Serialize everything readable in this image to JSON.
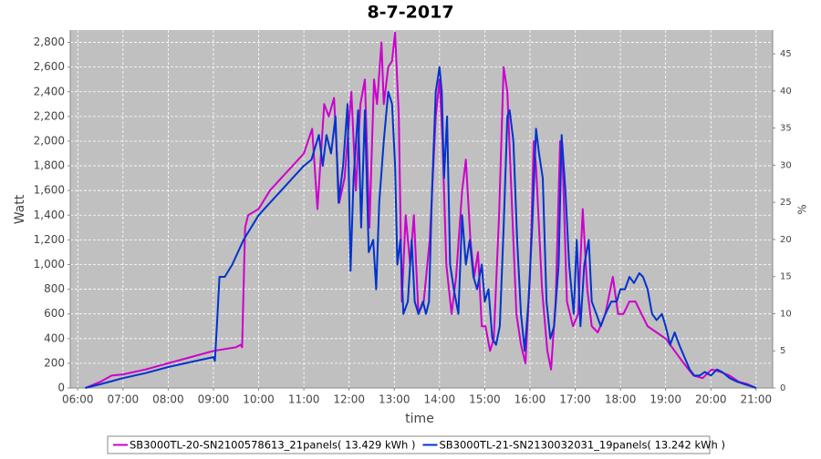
{
  "chart_data": {
    "type": "line",
    "title": "8-7-2017",
    "x_label": "time",
    "y_label": "Watt",
    "y2_label": "%",
    "xlim": [
      "05:50",
      "21:22"
    ],
    "xticks": [
      "06:00",
      "07:00",
      "08:00",
      "09:00",
      "10:00",
      "11:00",
      "12:00",
      "13:00",
      "14:00",
      "15:00",
      "16:00",
      "17:00",
      "18:00",
      "19:00",
      "20:00",
      "21:00"
    ],
    "ylim": [
      0,
      2900
    ],
    "yticks": [
      0,
      200,
      400,
      600,
      800,
      {
        "value": 1000,
        "label": "1,000"
      },
      {
        "value": 1200,
        "label": "1,200"
      },
      {
        "value": 1400,
        "label": "1,400"
      },
      {
        "value": 1600,
        "label": "1,600"
      },
      {
        "value": 1800,
        "label": "1,800"
      },
      {
        "value": 2000,
        "label": "2,000"
      },
      {
        "value": 2200,
        "label": "2,200"
      },
      {
        "value": 2400,
        "label": "2,400"
      },
      {
        "value": 2600,
        "label": "2,600"
      },
      {
        "value": 2800,
        "label": "2,800"
      }
    ],
    "y2lim": [
      0,
      48.2
    ],
    "y2ticks": [
      0,
      5,
      10,
      15,
      20,
      25,
      30,
      35,
      40,
      45
    ],
    "grid": true,
    "legend": "bottom",
    "series": [
      {
        "name": "SB3000TL-20-SN2100578613_21panels( 13.429 kWh )",
        "color": "#cc00cc",
        "x": [
          "06:10",
          "06:30",
          "06:45",
          "07:00",
          "07:30",
          "08:00",
          "08:30",
          "09:00",
          "09:30",
          "09:36",
          "09:38",
          "09:42",
          "09:46",
          "10:00",
          "10:15",
          "10:30",
          "10:45",
          "11:00",
          "11:11",
          "11:18",
          "11:27",
          "11:33",
          "11:40",
          "11:47",
          "11:54",
          "12:03",
          "12:09",
          "12:15",
          "12:21",
          "12:27",
          "12:33",
          "12:37",
          "12:43",
          "12:46",
          "12:52",
          "12:57",
          "13:01",
          "13:06",
          "13:10",
          "13:15",
          "13:21",
          "13:26",
          "13:32",
          "13:39",
          "13:47",
          "13:55",
          "14:00",
          "14:04",
          "14:09",
          "14:16",
          "14:22",
          "14:30",
          "14:35",
          "14:41",
          "14:46",
          "14:51",
          "14:56",
          "15:01",
          "15:07",
          "15:12",
          "15:19",
          "15:25",
          "15:30",
          "15:36",
          "15:42",
          "15:48",
          "15:54",
          "16:00",
          "16:05",
          "16:08",
          "16:16",
          "16:23",
          "16:28",
          "16:34",
          "16:40",
          "16:43",
          "16:49",
          "16:57",
          "17:04",
          "17:10",
          "17:16",
          "17:22",
          "17:30",
          "17:40",
          "17:50",
          "17:57",
          "18:04",
          "18:12",
          "18:20",
          "18:28",
          "18:36",
          "18:48",
          "19:00",
          "19:12",
          "19:24",
          "19:37",
          "19:49",
          "20:01",
          "20:13",
          "20:25",
          "20:37",
          "20:49",
          "21:00"
        ],
        "values": [
          0,
          50,
          100,
          110,
          150,
          200,
          250,
          300,
          330,
          350,
          330,
          1300,
          1400,
          1450,
          1600,
          1700,
          1800,
          1900,
          2100,
          1450,
          2300,
          2200,
          2350,
          1500,
          1700,
          2400,
          1600,
          2300,
          2500,
          1300,
          2500,
          2300,
          2800,
          2300,
          2600,
          2650,
          2880,
          2200,
          700,
          1400,
          1000,
          1400,
          600,
          700,
          1200,
          2200,
          2500,
          2000,
          1000,
          600,
          900,
          1600,
          1850,
          1200,
          900,
          1100,
          500,
          500,
          300,
          400,
          1400,
          2600,
          2400,
          1500,
          600,
          350,
          200,
          900,
          2000,
          1800,
          800,
          300,
          150,
          700,
          2000,
          1900,
          700,
          500,
          600,
          1450,
          800,
          500,
          450,
          600,
          900,
          600,
          600,
          700,
          700,
          600,
          500,
          450,
          400,
          300,
          200,
          100,
          80,
          150,
          130,
          100,
          50,
          30,
          0
        ]
      },
      {
        "name": "SB3000TL-21-SN2130032031_19panels( 13.242 kWh )",
        "color": "#0033cc",
        "x": [
          "06:10",
          "06:30",
          "07:00",
          "07:30",
          "08:00",
          "08:30",
          "09:00",
          "09:02",
          "09:05",
          "09:08",
          "09:15",
          "09:25",
          "09:40",
          "10:00",
          "10:15",
          "10:30",
          "10:45",
          "11:00",
          "11:10",
          "11:20",
          "11:25",
          "11:30",
          "11:36",
          "11:42",
          "11:46",
          "11:52",
          "11:58",
          "12:02",
          "12:06",
          "12:12",
          "12:16",
          "12:21",
          "12:26",
          "12:32",
          "12:36",
          "12:40",
          "12:46",
          "12:52",
          "12:57",
          "13:01",
          "13:04",
          "13:08",
          "13:12",
          "13:18",
          "13:23",
          "13:27",
          "13:32",
          "13:38",
          "13:42",
          "13:46",
          "13:50",
          "13:55",
          "14:00",
          "14:03",
          "14:06",
          "14:10",
          "14:14",
          "14:19",
          "14:25",
          "14:30",
          "14:35",
          "14:40",
          "14:45",
          "14:50",
          "14:56",
          "15:00",
          "15:05",
          "15:10",
          "15:15",
          "15:20",
          "15:25",
          "15:30",
          "15:33",
          "15:38",
          "15:43",
          "15:48",
          "15:53",
          "15:58",
          "16:03",
          "16:08",
          "16:12",
          "16:17",
          "16:22",
          "16:27",
          "16:32",
          "16:38",
          "16:42",
          "16:47",
          "16:52",
          "16:58",
          "17:02",
          "17:07",
          "17:12",
          "17:18",
          "17:22",
          "17:28",
          "17:34",
          "17:40",
          "17:48",
          "17:55",
          "18:00",
          "18:06",
          "18:12",
          "18:18",
          "18:25",
          "18:30",
          "18:36",
          "18:42",
          "18:48",
          "18:55",
          "19:00",
          "19:06",
          "19:12",
          "19:18",
          "19:25",
          "19:32",
          "19:38",
          "19:45",
          "19:52",
          "20:00",
          "20:08",
          "20:15",
          "20:25",
          "20:35",
          "20:45",
          "20:55",
          "21:00"
        ],
        "values": [
          0,
          30,
          80,
          120,
          170,
          210,
          250,
          220,
          550,
          900,
          900,
          1000,
          1200,
          1400,
          1500,
          1600,
          1700,
          1800,
          1850,
          2050,
          1800,
          2050,
          1900,
          2200,
          1500,
          1800,
          2300,
          950,
          1700,
          2250,
          1300,
          2250,
          1100,
          1200,
          800,
          1500,
          2000,
          2400,
          2300,
          1800,
          1000,
          1200,
          600,
          700,
          1200,
          700,
          600,
          700,
          600,
          700,
          1600,
          2400,
          2600,
          2400,
          1700,
          2200,
          1000,
          800,
          600,
          1400,
          1000,
          1200,
          900,
          800,
          1000,
          700,
          800,
          400,
          350,
          500,
          1300,
          2200,
          2250,
          2000,
          1200,
          600,
          300,
          700,
          1300,
          2100,
          1900,
          1700,
          700,
          400,
          500,
          1000,
          2050,
          1600,
          1000,
          600,
          1200,
          500,
          1000,
          1200,
          700,
          600,
          500,
          600,
          700,
          700,
          800,
          800,
          900,
          850,
          930,
          900,
          800,
          600,
          550,
          600,
          500,
          350,
          450,
          350,
          250,
          150,
          100,
          100,
          130,
          100,
          150,
          130,
          80,
          50,
          30,
          10,
          0
        ]
      }
    ]
  }
}
